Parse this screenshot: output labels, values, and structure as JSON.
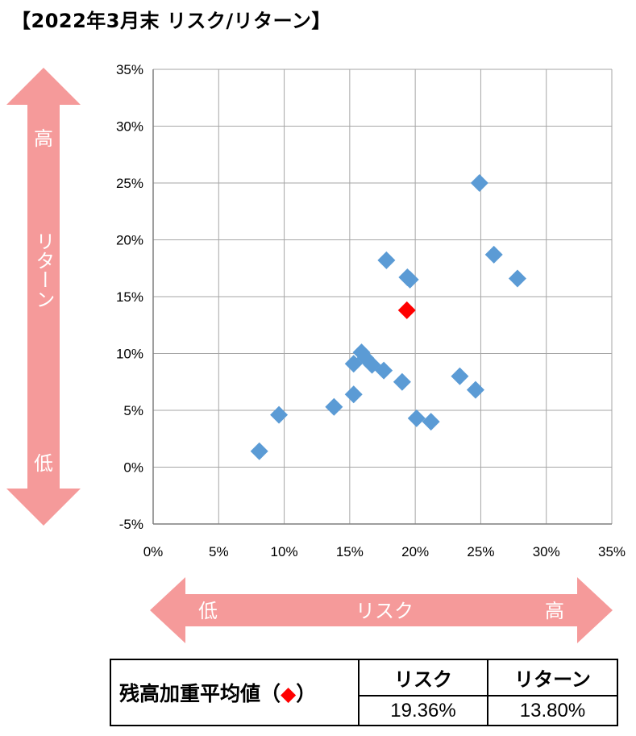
{
  "title": "【2022年3月末 リスク/リターン】",
  "chart_data": {
    "type": "scatter",
    "title": "【2022年3月末 リスク/リターン】",
    "xlabel": "リスク",
    "ylabel": "リターン",
    "xlim": [
      0,
      35
    ],
    "ylim": [
      -5,
      35
    ],
    "x_ticks": [
      "0%",
      "5%",
      "10%",
      "15%",
      "20%",
      "25%",
      "30%",
      "35%"
    ],
    "y_ticks": [
      "35%",
      "30%",
      "25%",
      "20%",
      "15%",
      "10%",
      "5%",
      "0%",
      "-5%"
    ],
    "grid": true,
    "series": [
      {
        "color": "#5b9bd5",
        "marker": "diamond",
        "points": [
          {
            "x": 8.1,
            "y": 1.4
          },
          {
            "x": 9.6,
            "y": 4.6
          },
          {
            "x": 13.8,
            "y": 5.3
          },
          {
            "x": 15.3,
            "y": 6.4
          },
          {
            "x": 15.3,
            "y": 9.1
          },
          {
            "x": 15.9,
            "y": 10.1
          },
          {
            "x": 16.2,
            "y": 9.6
          },
          {
            "x": 16.7,
            "y": 9.0
          },
          {
            "x": 17.6,
            "y": 8.5
          },
          {
            "x": 17.8,
            "y": 18.2
          },
          {
            "x": 19.0,
            "y": 7.5
          },
          {
            "x": 19.4,
            "y": 16.7
          },
          {
            "x": 19.6,
            "y": 16.5
          },
          {
            "x": 20.1,
            "y": 4.3
          },
          {
            "x": 21.2,
            "y": 4.0
          },
          {
            "x": 23.4,
            "y": 8.0
          },
          {
            "x": 24.6,
            "y": 6.8
          },
          {
            "x": 24.9,
            "y": 25.0
          },
          {
            "x": 26.0,
            "y": 18.7
          },
          {
            "x": 27.8,
            "y": 16.6
          }
        ]
      },
      {
        "color": "#ff0000",
        "marker": "diamond",
        "points": [
          {
            "x": 19.36,
            "y": 13.8
          }
        ]
      }
    ]
  },
  "arrows": {
    "vertical": {
      "high": "高",
      "label": "リターン",
      "low": "低",
      "color": "#f59a9a"
    },
    "horizontal": {
      "low": "低",
      "label": "リスク",
      "high": "高",
      "color": "#f59a9a"
    }
  },
  "summary": {
    "label": "残高加重平均値（",
    "label_symbol": "◆",
    "label_close": "）",
    "headers": [
      "リスク",
      "リターン"
    ],
    "values": [
      "19.36%",
      "13.80%"
    ]
  }
}
